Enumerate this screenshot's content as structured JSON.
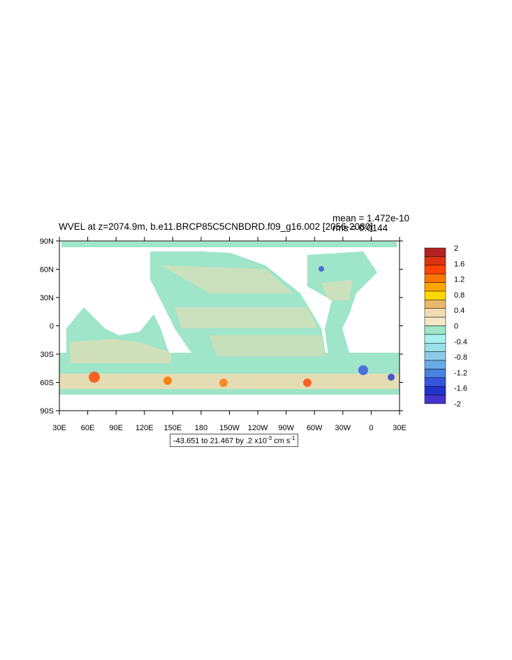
{
  "title": "WVEL at z=2074.9m, b.e11.BRCP85C5CNBDRD.f09_g16.002 [2056-2080]",
  "stats": {
    "mean": "mean = 1.472e-10",
    "rms": "rms = 0.0144"
  },
  "axes": {
    "lat_labels": [
      "90N",
      "60N",
      "30N",
      "0",
      "30S",
      "60S",
      "90S"
    ],
    "lon_labels": [
      "30E",
      "60E",
      "90E",
      "120E",
      "150E",
      "180",
      "150W",
      "120W",
      "90W",
      "60W",
      "30W",
      "0",
      "30E"
    ]
  },
  "colorbar": {
    "labels": [
      "2",
      "1.6",
      "1.2",
      "0.8",
      "0.4",
      "0",
      "-0.4",
      "-0.8",
      "-1.2",
      "-1.6",
      "-2"
    ],
    "colors": [
      "#b22222",
      "#dd3311",
      "#ff4400",
      "#ff7700",
      "#ffa500",
      "#ffd700",
      "#e8b86a",
      "#f0dcb0",
      "#f5e6c8",
      "#9ee5c9",
      "#a8f0f0",
      "#99e0e8",
      "#8ec9e8",
      "#6aaae8",
      "#4a80e0",
      "#3555dd",
      "#2233cc",
      "#4433cc"
    ],
    "footer_main": "-43.651 to 21.467 by .2 x10",
    "footer_exp": "-3",
    "footer_unit": " cm s",
    "footer_unit_exp": "-1"
  },
  "map": {
    "ocean_fill": "#9ee5c9",
    "positive_fill": "#f0dcb0",
    "land_fill": "#ffffff"
  }
}
